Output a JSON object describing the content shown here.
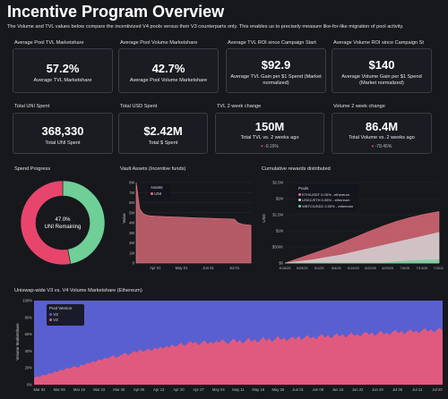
{
  "header": {
    "title": "Incentive Program Overview",
    "subtitle": "The Volume and TVL values below compare the incentivized V4 pools versus their V3 counterparts only. This enables us to precisely measure like-for-like migration of pool activity."
  },
  "kpi_row1": [
    {
      "label": "Average Pool TVL Marketshare",
      "value": "57.2%",
      "caption": "Average TVL Marketshare"
    },
    {
      "label": "Average Pool Volume Marketshare",
      "value": "42.7%",
      "caption": "Average Pool Volume Marketshare"
    },
    {
      "label": "Average TVL ROI since Campaign Start",
      "value": "$92.9",
      "caption1": "Average TVL Gain per $1 Spend (Market",
      "caption2": "normalized)"
    },
    {
      "label": "Average Volume ROI since Campaign St",
      "value": "$140",
      "caption1": "Average Volume Gain per $1 Spend",
      "caption2": "(Market normalized)"
    }
  ],
  "kpi_row2": [
    {
      "label": "Total UNI Spent",
      "value": "368,330",
      "caption": "Total UNI Spent"
    },
    {
      "label": "Total USD Spent",
      "value": "$2.42M",
      "caption": "Total $ Spent"
    },
    {
      "label": "TVL 2 week change",
      "value": "150M",
      "caption": "Total TVL vs. 2 weeks ago",
      "change": "-0.16%"
    },
    {
      "label": "Volume 2 week change",
      "value": "86.4M",
      "caption": "Total Volume vs. 2 weeks ago",
      "change": "-78.45%"
    }
  ],
  "colors": {
    "accent_pink": "#e8456c",
    "accent_green": "#6fcf97",
    "v3_blue": "#5a5fcf",
    "v4_pink": "#ec5a78"
  },
  "chart_data": [
    {
      "type": "pie",
      "title": "Spend Progress",
      "center_value": "47.0%",
      "center_label": "UNI Remaining",
      "slices": [
        {
          "name": "Remaining",
          "value": 47.0,
          "color": "#6fcf97"
        },
        {
          "name": "Spent",
          "value": 53.0,
          "color": "#e8456c"
        }
      ]
    },
    {
      "type": "area",
      "title": "Vault Assets (Incentive funds)",
      "ylabel": "Value",
      "yticks": [
        "0",
        "1M",
        "2M",
        "3M",
        "4M",
        "5M",
        "6M",
        "7M",
        "8M"
      ],
      "xticks": [
        "Apr 01",
        "May 01",
        "Jun 01",
        "Jul 01"
      ],
      "legend_title": "Assets",
      "series": [
        {
          "name": "UNI",
          "color": "#e8707f",
          "x": [
            "2025-03-10",
            "2025-03-14",
            "2025-03-18",
            "2025-03-22",
            "2025-03-26",
            "2025-04-01",
            "2025-04-15",
            "2025-05-01",
            "2025-05-15",
            "2025-06-01",
            "2025-06-10",
            "2025-06-20",
            "2025-07-01",
            "2025-07-05",
            "2025-07-10",
            "2025-07-15",
            "2025-07-20"
          ],
          "values": [
            8.0,
            5.4,
            4.9,
            4.75,
            4.7,
            4.65,
            4.6,
            4.55,
            4.5,
            4.45,
            4.42,
            4.4,
            4.35,
            4.0,
            3.85,
            3.8,
            3.75
          ]
        }
      ]
    },
    {
      "type": "area",
      "title": "Cumulative rewards distributed",
      "ylabel": "USD",
      "yticks": [
        "$0",
        "$500K",
        "$1M",
        "$1.5M",
        "$2M",
        "$2.5M"
      ],
      "xticks": [
        "5/18/25",
        "5/25/25",
        "6/1/25",
        "6/8/25",
        "6/15/25",
        "6/22/25",
        "6/29/25",
        "7/6/25",
        "7/13/25",
        "7/20/25"
      ],
      "legend_title": "Pools",
      "series": [
        {
          "name": "ETH/USDT 0.05% - ethereum",
          "color": "#e8707f",
          "values": [
            0,
            0.15,
            0.3,
            0.45,
            0.62,
            0.8,
            0.98,
            1.15,
            1.3,
            1.42,
            1.52,
            1.6
          ]
        },
        {
          "name": "USDC/ETH 0.05% - ethereum",
          "color": "#d4d4d4",
          "values": [
            0,
            0.05,
            0.1,
            0.18,
            0.25,
            0.35,
            0.45,
            0.55,
            0.65,
            0.75,
            0.85,
            0.95
          ]
        },
        {
          "name": "WBTC/USDC 0.05% - ethereum",
          "color": "#6fcf97",
          "values": [
            0,
            0,
            0,
            0,
            0,
            0,
            0,
            0,
            0.04,
            0.07,
            0.09,
            0.1
          ]
        }
      ]
    },
    {
      "type": "area",
      "title": "Uniswap-wide V3 vs. V4 Volume Marketshare (Ethereum)",
      "ylabel": "Volume Marketshare",
      "yticks": [
        "0%",
        "20%",
        "40%",
        "60%",
        "80%",
        "100%"
      ],
      "xticks": [
        "Mar 02",
        "Mar 09",
        "Mar 16",
        "Mar 23",
        "Mar 30",
        "Apr 06",
        "Apr 13",
        "Apr 20",
        "Apr 27",
        "May 04",
        "May 11",
        "May 18",
        "May 25",
        "Jun 01",
        "Jun 08",
        "Jun 15",
        "Jun 22",
        "Jun 29",
        "Jul 06",
        "Jul 13",
        "Jul 20"
      ],
      "legend_title": "Pool Version",
      "series": [
        {
          "name": "V3",
          "color": "#5a5fcf"
        },
        {
          "name": "V4",
          "color": "#ec5a78",
          "values": [
            8,
            10,
            9,
            12,
            11,
            14,
            13,
            16,
            15,
            18,
            17,
            20,
            19,
            21,
            22,
            20,
            24,
            23,
            26,
            25,
            28,
            27,
            30,
            29,
            32,
            31,
            33,
            35,
            32,
            34,
            36,
            38,
            35,
            37,
            40,
            38,
            42,
            39,
            41,
            43,
            40,
            44,
            42,
            45,
            43,
            46,
            44,
            48,
            45,
            47,
            50,
            46,
            48,
            52,
            49,
            51,
            47,
            50,
            53,
            48,
            51,
            49,
            52,
            50,
            54,
            51,
            48,
            52,
            55,
            50,
            53,
            49,
            52,
            56,
            51,
            54,
            50,
            53,
            57,
            52,
            55,
            51,
            54,
            58,
            53,
            56,
            52,
            55,
            57,
            54,
            58,
            53,
            56,
            59,
            55,
            57,
            54,
            58,
            60,
            56,
            59,
            55,
            58,
            61,
            57,
            60,
            56,
            59,
            62,
            58,
            60,
            57,
            61,
            63,
            59,
            62,
            58,
            61,
            64,
            60,
            62,
            59,
            63,
            65,
            61,
            64,
            60,
            63,
            66,
            62,
            64,
            61,
            65,
            67,
            63,
            66,
            62,
            65,
            68,
            64
          ]
        }
      ]
    }
  ]
}
